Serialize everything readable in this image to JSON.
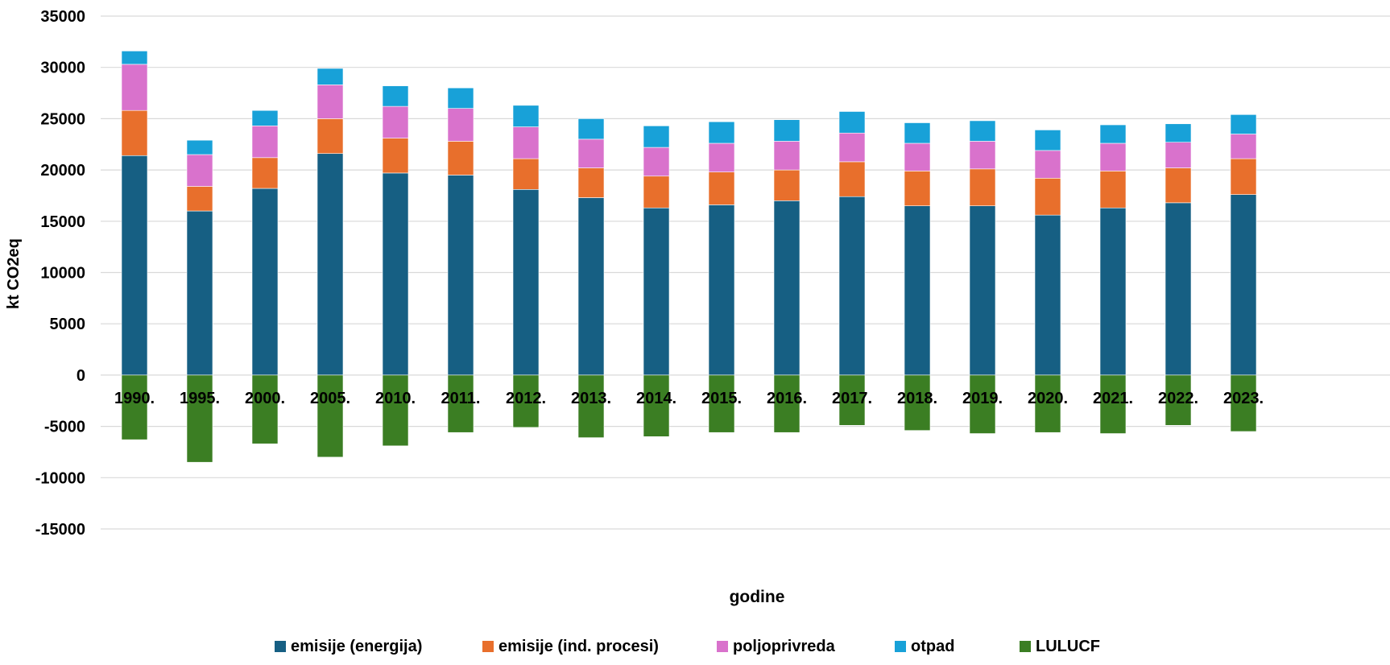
{
  "chart_data": {
    "type": "bar",
    "stacked": true,
    "categories": [
      "1990.",
      "1995.",
      "2000.",
      "2005.",
      "2010.",
      "2011.",
      "2012.",
      "2013.",
      "2014.",
      "2015.",
      "2016.",
      "2017.",
      "2018.",
      "2019.",
      "2020.",
      "2021.",
      "2022.",
      "2023."
    ],
    "series": [
      {
        "name": "emisije (energija)",
        "color": "#165F83",
        "values": [
          21400,
          16000,
          18200,
          21600,
          19700,
          19500,
          18100,
          17300,
          16300,
          16600,
          17000,
          17400,
          16500,
          16500,
          15600,
          16300,
          16800,
          17600
        ]
      },
      {
        "name": "emisije (ind. procesi)",
        "color": "#E86F2C",
        "values": [
          4400,
          2400,
          3000,
          3400,
          3400,
          3300,
          3000,
          2900,
          3100,
          3200,
          3000,
          3400,
          3400,
          3600,
          3600,
          3600,
          3400,
          3500
        ]
      },
      {
        "name": "poljoprivreda",
        "color": "#D972CC",
        "values": [
          4500,
          3100,
          3100,
          3300,
          3100,
          3200,
          3100,
          2800,
          2800,
          2800,
          2800,
          2800,
          2700,
          2700,
          2700,
          2700,
          2500,
          2400
        ]
      },
      {
        "name": "otpad",
        "color": "#18A1D8",
        "values": [
          1300,
          1400,
          1500,
          1600,
          2000,
          2000,
          2100,
          2000,
          2100,
          2100,
          2100,
          2100,
          2000,
          2000,
          2000,
          1800,
          1800,
          1900
        ]
      },
      {
        "name": "LULUCF",
        "color": "#3B7E23",
        "values": [
          -6300,
          -8500,
          -6700,
          -8000,
          -6900,
          -5600,
          -5100,
          -6100,
          -6000,
          -5600,
          -5600,
          -4900,
          -5400,
          -5700,
          -5600,
          -5700,
          -4900,
          -5500
        ]
      }
    ],
    "xlabel": "godine",
    "ylabel": "kt CO2eq",
    "ylim": [
      -15000,
      35000
    ],
    "yticks": [
      35000,
      30000,
      25000,
      20000,
      15000,
      10000,
      5000,
      0,
      -5000,
      -10000,
      -15000
    ],
    "grid": true,
    "legend_position": "bottom"
  }
}
